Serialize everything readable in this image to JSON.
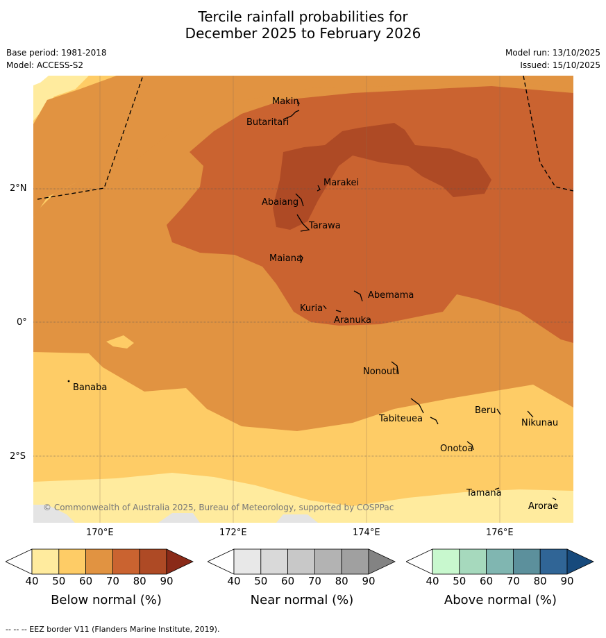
{
  "header": {
    "title_line1": "Tercile rainfall probabilities for",
    "title_line2": "December 2025 to February 2026",
    "base_period": "Base period: 1981-2018",
    "model": "Model: ACCESS-S2",
    "model_run": "Model run: 13/10/2025",
    "issued": "Issued: 15/10/2025"
  },
  "map": {
    "lat_labels": [
      "2°N",
      "0°",
      "2°S"
    ],
    "lon_labels": [
      "170°E",
      "172°E",
      "174°E",
      "176°E"
    ],
    "places": [
      {
        "key": "makin",
        "name": "Makin"
      },
      {
        "key": "butaritari",
        "name": "Butaritari"
      },
      {
        "key": "marakei",
        "name": "Marakei"
      },
      {
        "key": "abaiang",
        "name": "Abaiang"
      },
      {
        "key": "tarawa",
        "name": "Tarawa"
      },
      {
        "key": "maiana",
        "name": "Maiana"
      },
      {
        "key": "abemama",
        "name": "Abemama"
      },
      {
        "key": "kuria",
        "name": "Kuria"
      },
      {
        "key": "aranuka",
        "name": "Aranuka"
      },
      {
        "key": "nonouti",
        "name": "Nonouti"
      },
      {
        "key": "banaba",
        "name": "Banaba"
      },
      {
        "key": "beru",
        "name": "Beru"
      },
      {
        "key": "nikunau",
        "name": "Nikunau"
      },
      {
        "key": "tabiteuea",
        "name": "Tabiteuea"
      },
      {
        "key": "onotoa",
        "name": "Onotoa"
      },
      {
        "key": "tamana",
        "name": "Tamana"
      },
      {
        "key": "arorae",
        "name": "Arorae"
      }
    ],
    "copyright": "© Commonwealth of Australia 2025, Bureau of Meteorology, supported by COSPPac"
  },
  "colorbars": {
    "ticks": [
      "40",
      "50",
      "60",
      "70",
      "80",
      "90"
    ],
    "below": {
      "label": "Below normal (%)",
      "colors": [
        "#ffffff",
        "#ffeb9e",
        "#fecc66",
        "#e19341",
        "#ca6330",
        "#ae4a25",
        "#8a2a18"
      ]
    },
    "near": {
      "label": "Near normal (%)",
      "colors": [
        "#ffffff",
        "#e8e8e8",
        "#d9d9d9",
        "#c8c8c8",
        "#b3b3b3",
        "#a0a0a0",
        "#838383"
      ]
    },
    "above": {
      "label": "Above normal (%)",
      "colors": [
        "#ffffff",
        "#c8f8ce",
        "#a6d9bd",
        "#80b6b1",
        "#5c909c",
        "#306596",
        "#174a7c"
      ]
    }
  },
  "footer": {
    "eez": "--  --  -- EEZ border V11 (Flanders Marine Institute, 2019)."
  }
}
